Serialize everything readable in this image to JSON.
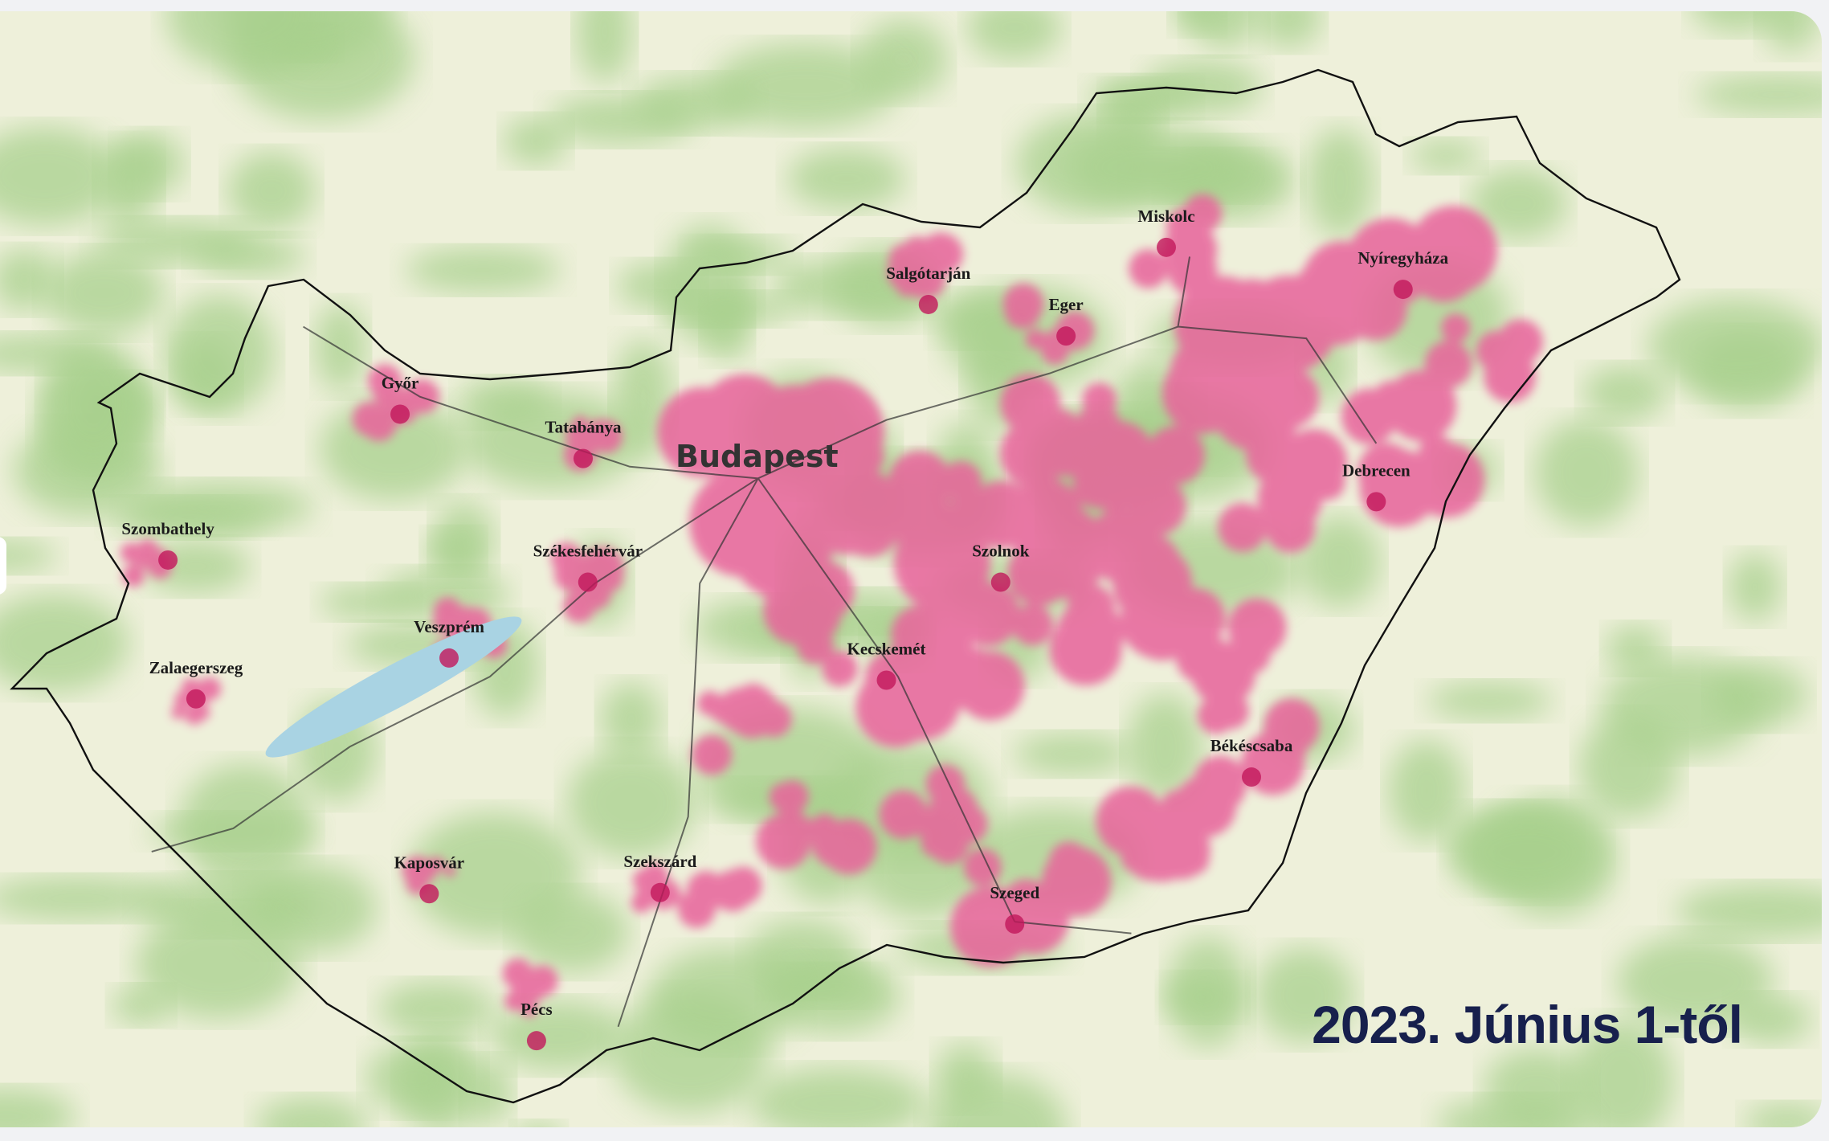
{
  "title": "2023. Június 1-től",
  "map": {
    "capital": "Budapest",
    "cities": [
      "Miskolc",
      "Nyíregyháza",
      "Salgótarján",
      "Eger",
      "Győr",
      "Tatabánya",
      "Debrecen",
      "Szombathely",
      "Székesfehérvár",
      "Szolnok",
      "Veszprém",
      "Kecskemét",
      "Zalaegerszeg",
      "Békéscsaba",
      "Kaposvár",
      "Szekszárd",
      "Szeged",
      "Pécs"
    ],
    "colors": {
      "coverage": "#e8639b",
      "border": "#111111",
      "forest": "#a8d08d",
      "land": "#eef0da",
      "water": "#a9d3e3",
      "title": "#17204d"
    }
  }
}
